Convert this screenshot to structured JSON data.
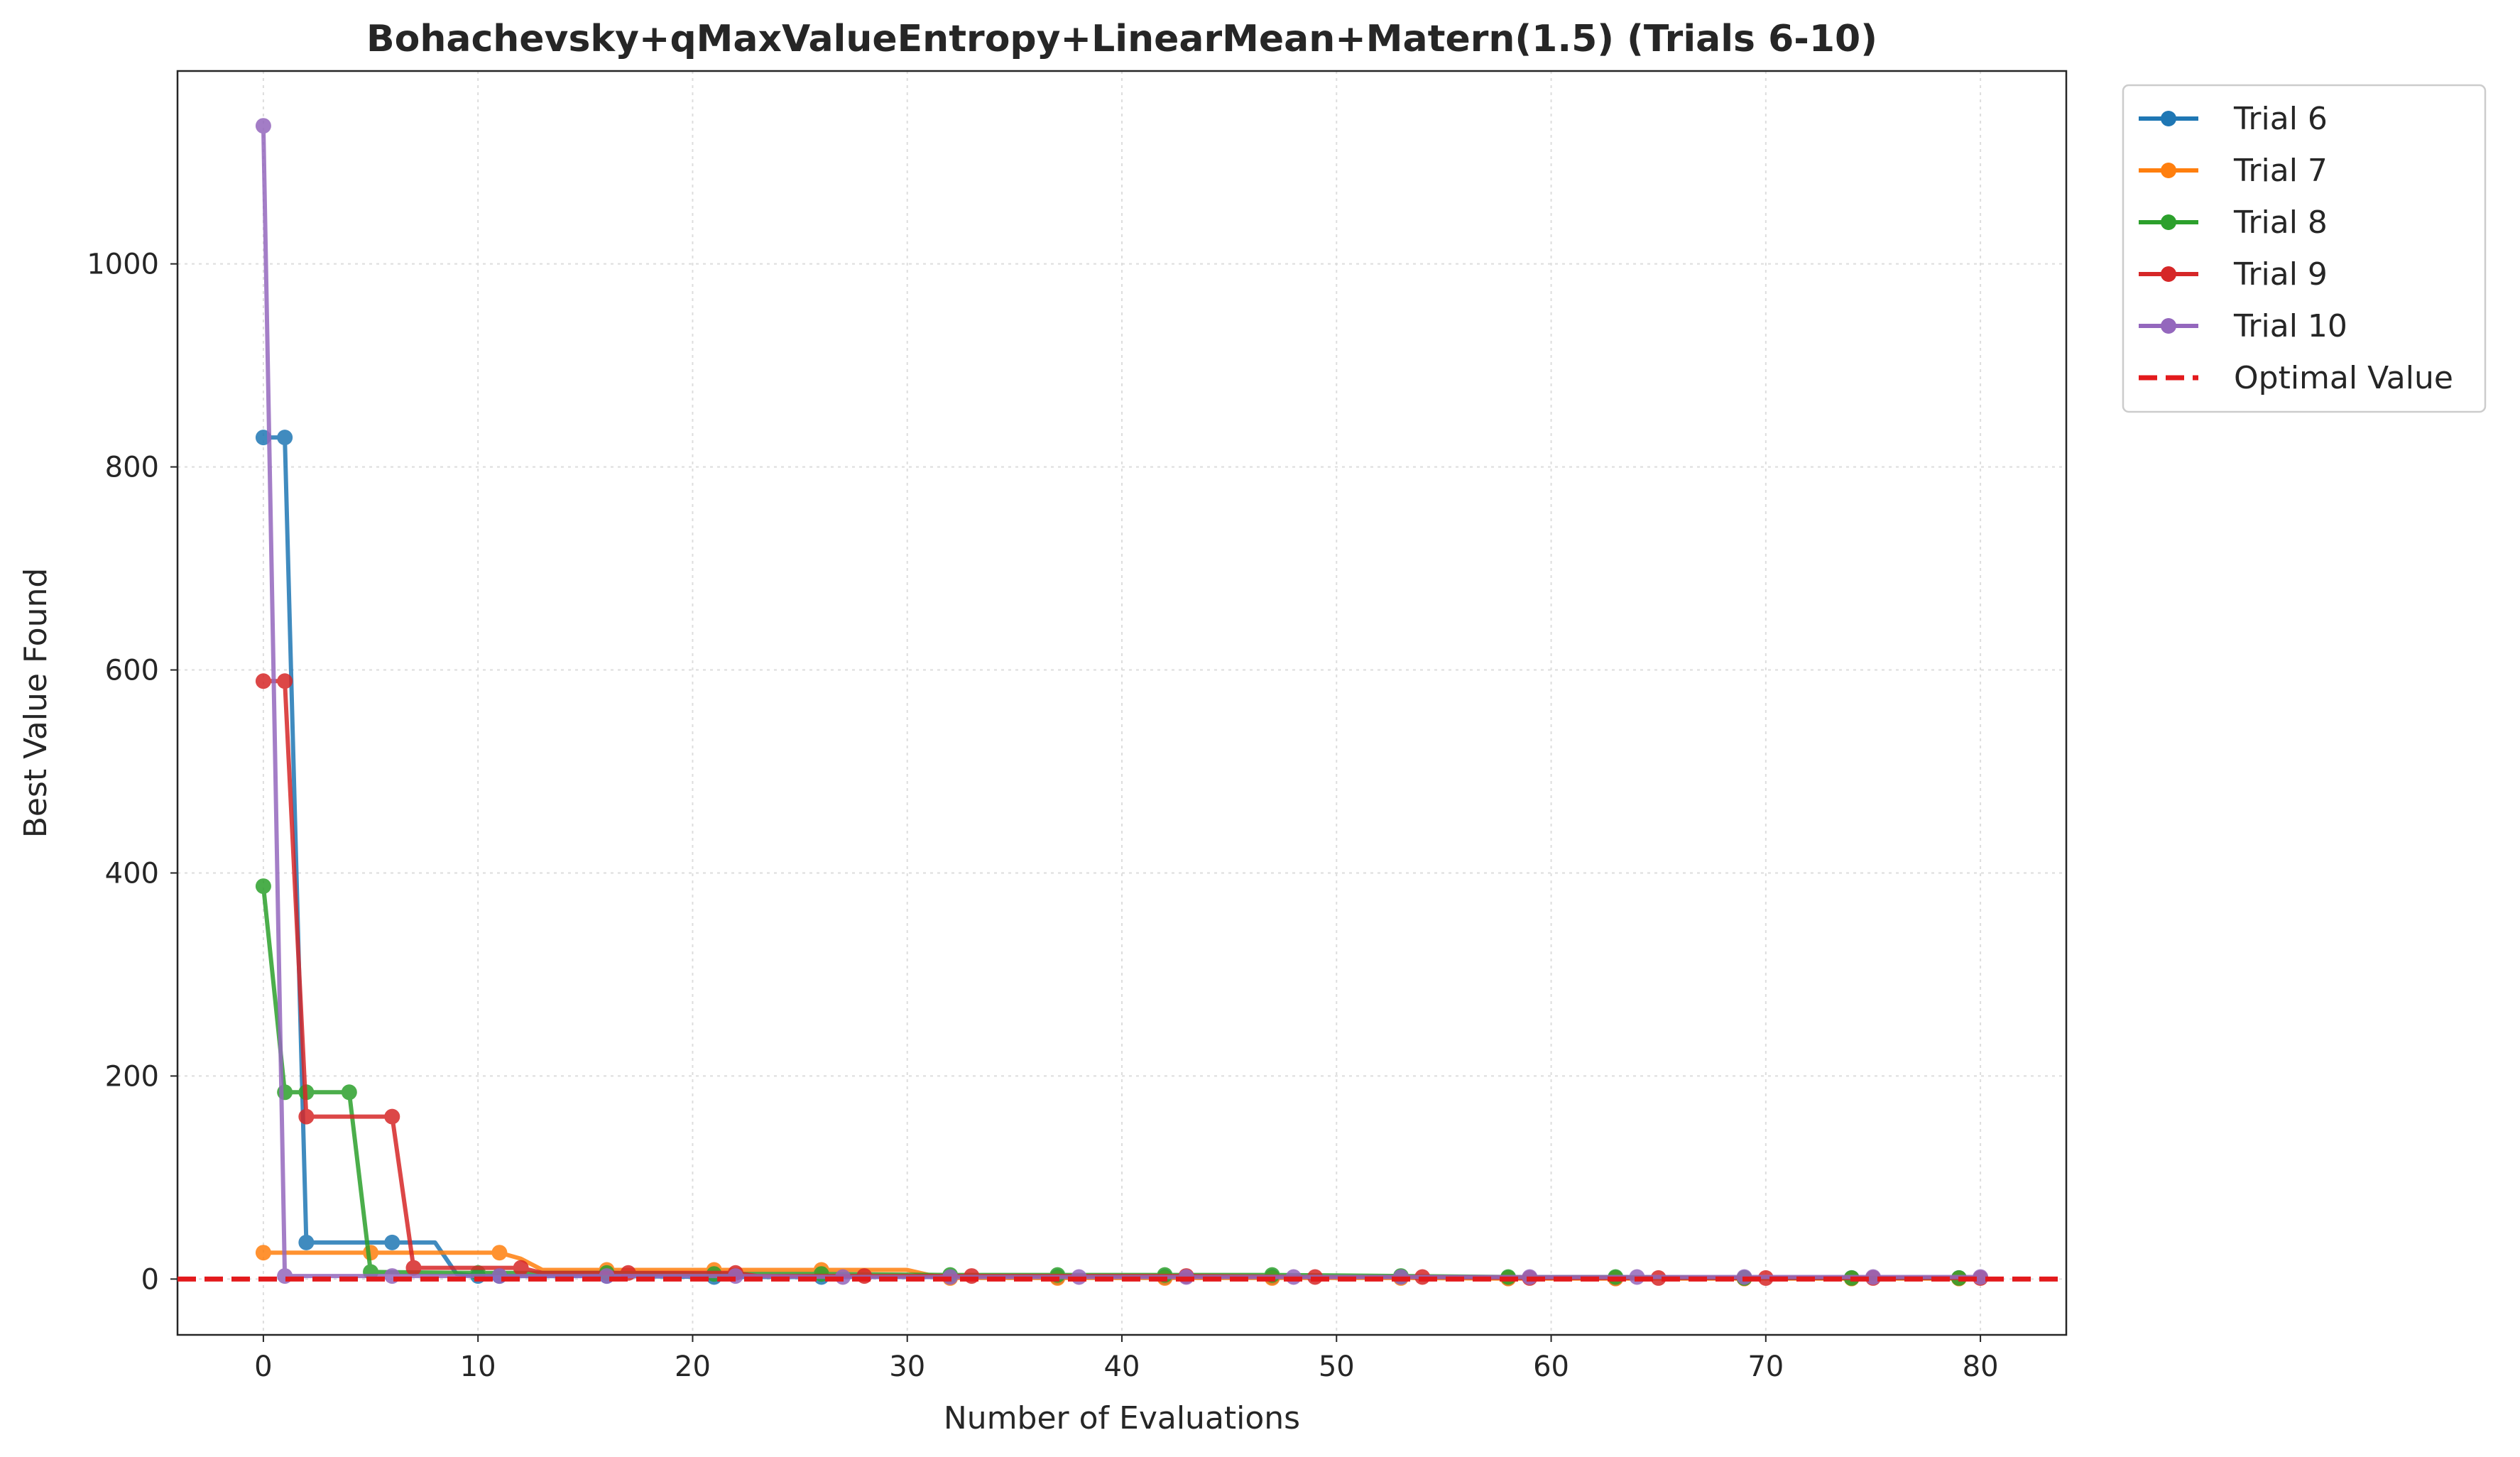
{
  "chart_data": {
    "type": "line",
    "title": "Bohachevsky+qMaxValueEntropy+LinearMean+Matern(1.5) (Trials 6-10)",
    "xlabel": "Number of Evaluations",
    "ylabel": "Best Value Found",
    "xlim": [
      -4,
      84
    ],
    "ylim": [
      -55,
      1190
    ],
    "xticks": [
      0,
      10,
      20,
      30,
      40,
      50,
      60,
      70,
      80
    ],
    "yticks": [
      0,
      200,
      400,
      600,
      800,
      1000
    ],
    "grid": true,
    "legend_position": "outside top-right",
    "series": [
      {
        "name": "Trial 6",
        "color": "#1f77b4",
        "points": [
          [
            0,
            829
          ],
          [
            1,
            829
          ],
          [
            2,
            36
          ],
          [
            6,
            36
          ],
          [
            8,
            36
          ],
          [
            9,
            5
          ],
          [
            10,
            3
          ],
          [
            11,
            3
          ],
          [
            16,
            3
          ],
          [
            21,
            2
          ],
          [
            26,
            2
          ],
          [
            32,
            2
          ],
          [
            37,
            2
          ],
          [
            42,
            2
          ],
          [
            47,
            2
          ],
          [
            53,
            2
          ],
          [
            58,
            1
          ],
          [
            63,
            1
          ],
          [
            69,
            1
          ],
          [
            74,
            1
          ],
          [
            79,
            1
          ]
        ],
        "markers": [
          0,
          1,
          2,
          6,
          10,
          11,
          16,
          21,
          26,
          32,
          37,
          42,
          47,
          53,
          58,
          63,
          69,
          74,
          79
        ]
      },
      {
        "name": "Trial 7",
        "color": "#ff7f0e",
        "points": [
          [
            0,
            26
          ],
          [
            5,
            26
          ],
          [
            11,
            26
          ],
          [
            12,
            20
          ],
          [
            13,
            9
          ],
          [
            16,
            9
          ],
          [
            21,
            9
          ],
          [
            26,
            9
          ],
          [
            30,
            9
          ],
          [
            31,
            4
          ],
          [
            32,
            1
          ],
          [
            37,
            1
          ],
          [
            42,
            1
          ],
          [
            47,
            1
          ],
          [
            53,
            1
          ],
          [
            58,
            0.5
          ],
          [
            63,
            0.5
          ],
          [
            69,
            0.5
          ],
          [
            74,
            0.5
          ],
          [
            79,
            0.5
          ]
        ],
        "markers": [
          0,
          5,
          11,
          16,
          21,
          26,
          32,
          37,
          42,
          47,
          53,
          58,
          63,
          69,
          74,
          79
        ]
      },
      {
        "name": "Trial 8",
        "color": "#2ca02c",
        "points": [
          [
            0,
            387
          ],
          [
            1,
            184
          ],
          [
            2,
            184
          ],
          [
            4,
            184
          ],
          [
            5,
            7
          ],
          [
            10,
            6
          ],
          [
            16,
            6
          ],
          [
            21,
            5
          ],
          [
            26,
            5
          ],
          [
            32,
            4
          ],
          [
            37,
            4
          ],
          [
            42,
            4
          ],
          [
            47,
            4
          ],
          [
            53,
            3
          ],
          [
            58,
            2
          ],
          [
            63,
            2
          ],
          [
            69,
            1
          ],
          [
            74,
            1
          ],
          [
            79,
            1
          ]
        ],
        "markers": [
          0,
          1,
          2,
          4,
          5,
          10,
          16,
          21,
          26,
          32,
          37,
          42,
          47,
          53,
          58,
          63,
          69,
          74,
          79
        ]
      },
      {
        "name": "Trial 9",
        "color": "#d62728",
        "points": [
          [
            0,
            589
          ],
          [
            1,
            589
          ],
          [
            2,
            160
          ],
          [
            6,
            160
          ],
          [
            7,
            11
          ],
          [
            12,
            11
          ],
          [
            13,
            6
          ],
          [
            17,
            6
          ],
          [
            22,
            6
          ],
          [
            23,
            3
          ],
          [
            28,
            3
          ],
          [
            33,
            3
          ],
          [
            43,
            3
          ],
          [
            49,
            2
          ],
          [
            54,
            2
          ],
          [
            59,
            1
          ],
          [
            65,
            1
          ],
          [
            70,
            1
          ],
          [
            75,
            1
          ],
          [
            80,
            1
          ]
        ],
        "markers": [
          0,
          1,
          2,
          6,
          7,
          12,
          17,
          22,
          28,
          33,
          43,
          49,
          54,
          59,
          65,
          70,
          75,
          80
        ]
      },
      {
        "name": "Trial 10",
        "color": "#9467bd",
        "points": [
          [
            0,
            1136
          ],
          [
            1,
            3
          ],
          [
            6,
            3
          ],
          [
            11,
            3
          ],
          [
            16,
            3
          ],
          [
            22,
            3
          ],
          [
            27,
            2
          ],
          [
            32,
            2
          ],
          [
            38,
            2
          ],
          [
            43,
            2
          ],
          [
            48,
            2
          ],
          [
            53,
            2
          ],
          [
            59,
            2
          ],
          [
            64,
            2
          ],
          [
            69,
            2
          ],
          [
            75,
            2
          ],
          [
            80,
            2
          ]
        ],
        "markers": [
          0,
          1,
          6,
          11,
          16,
          22,
          27,
          32,
          38,
          43,
          48,
          53,
          59,
          64,
          69,
          75,
          80
        ]
      }
    ],
    "reference_line": {
      "name": "Optimal Value",
      "y": 0,
      "color": "#e31a1c",
      "style": "dashed"
    }
  }
}
